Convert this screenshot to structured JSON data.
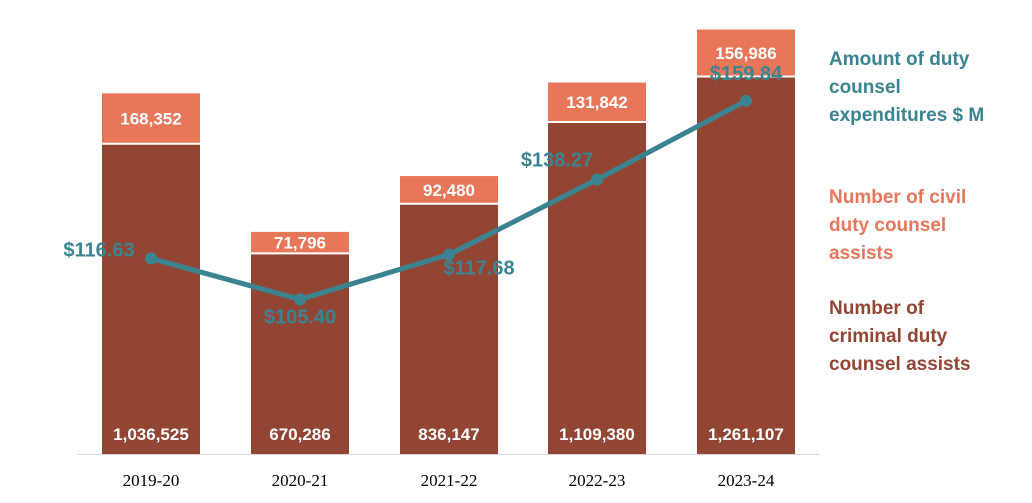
{
  "chart_data": {
    "type": "bar",
    "categories": [
      "2019-20",
      "2020-21",
      "2021-22",
      "2022-23",
      "2023-24"
    ],
    "series": [
      {
        "name": "Number of criminal duty counsel assists",
        "kind": "stacked-bar",
        "values": [
          1036525,
          670286,
          836147,
          1109380,
          1261107
        ],
        "labels": [
          "1,036,525",
          "670,286",
          "836,147",
          "1,109,380",
          "1,261,107"
        ],
        "color": "#934534"
      },
      {
        "name": "Number of civil duty counsel assists",
        "kind": "stacked-bar",
        "values": [
          168352,
          71796,
          92480,
          131842,
          156986
        ],
        "labels": [
          "168,352",
          "71,796",
          "92,480",
          "131,842",
          "156,986"
        ],
        "color": "#E8775A"
      },
      {
        "name": "Amount of duty counsel expenditures $ M",
        "kind": "line",
        "values": [
          116.63,
          105.4,
          117.68,
          138.27,
          159.84
        ],
        "labels": [
          "$116.63",
          "$105.40",
          "$117.68",
          "$138.27",
          "$159.84"
        ],
        "color": "#3A8491"
      }
    ],
    "bar_axis_max": 1450000,
    "line_axis_range": [
      63,
      182
    ],
    "grid": false,
    "legend_position": "right"
  },
  "legend": {
    "expenditures": "Amount of duty\ncounsel\nexpenditures $ M",
    "civil": "Number of civil\nduty counsel\nassists",
    "criminal": "Number of\ncriminal duty\ncounsel assists"
  }
}
